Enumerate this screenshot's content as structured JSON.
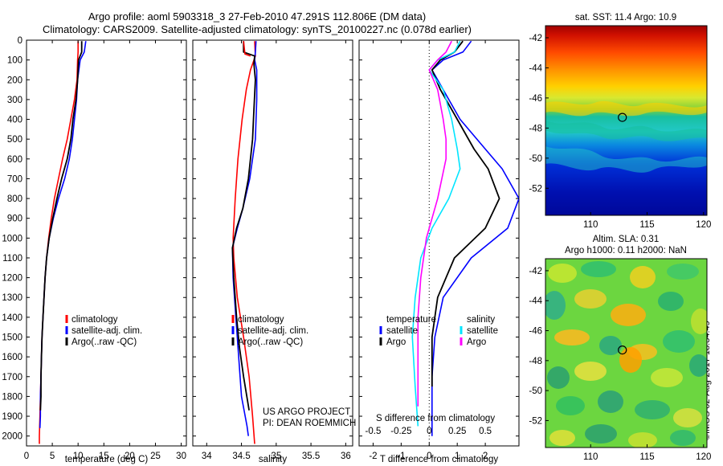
{
  "header": {
    "title_line1": "Argo profile: aoml 5903318_3 27-Feb-2010 47.291S 112.806E (DM data)",
    "title_line2": "Climatology: CARS2009. Satellite-adjusted climatology: synTS_20100227.nc (0.078d earlier)"
  },
  "stamp": "©IMOS 02-Aug-2017 18:34:49",
  "colors": {
    "climatology": "#ff0000",
    "satellite": "#0000ff",
    "argo": "#000000",
    "t_sat": "#0000ff",
    "s_sat": "#00e5ff",
    "s_argo": "#ff00ff"
  },
  "chart_data": [
    {
      "type": "line",
      "xlabel": "temperature (deg C)",
      "ylabel": "",
      "xlim": [
        0,
        31
      ],
      "ylim": [
        2050,
        0
      ],
      "xticks": [
        0,
        5,
        10,
        15,
        20,
        25,
        30
      ],
      "yticks": [
        0,
        100,
        200,
        300,
        400,
        500,
        600,
        700,
        800,
        900,
        1000,
        1100,
        1200,
        1300,
        1400,
        1500,
        1600,
        1700,
        1800,
        1900,
        2000
      ],
      "legend": [
        "climatology",
        "satellite-adj. clim.",
        "Argo(..raw -QC)"
      ],
      "legend_position": "lower-center",
      "series": [
        {
          "name": "climatology",
          "color": "#ff0000",
          "points": [
            [
              10.0,
              5
            ],
            [
              10.0,
              60
            ],
            [
              9.9,
              100
            ],
            [
              9.8,
              200
            ],
            [
              9.3,
              300
            ],
            [
              8.6,
              400
            ],
            [
              7.9,
              500
            ],
            [
              7.0,
              600
            ],
            [
              6.2,
              700
            ],
            [
              5.4,
              800
            ],
            [
              4.8,
              900
            ],
            [
              4.3,
              1000
            ],
            [
              3.9,
              1100
            ],
            [
              3.6,
              1200
            ],
            [
              3.4,
              1300
            ],
            [
              3.2,
              1400
            ],
            [
              3.0,
              1500
            ],
            [
              2.9,
              1600
            ],
            [
              2.8,
              1700
            ],
            [
              2.7,
              1800
            ],
            [
              2.6,
              1900
            ],
            [
              2.5,
              2000
            ],
            [
              2.5,
              2040
            ]
          ]
        },
        {
          "name": "satellite-adj. clim.",
          "color": "#0000ff",
          "points": [
            [
              11.5,
              5
            ],
            [
              11.2,
              60
            ],
            [
              10.4,
              100
            ],
            [
              9.9,
              200
            ],
            [
              9.7,
              300
            ],
            [
              9.3,
              400
            ],
            [
              8.9,
              500
            ],
            [
              8.3,
              600
            ],
            [
              7.4,
              700
            ],
            [
              6.2,
              800
            ],
            [
              5.2,
              900
            ],
            [
              4.4,
              1000
            ],
            [
              3.9,
              1100
            ],
            [
              3.6,
              1200
            ],
            [
              3.4,
              1300
            ],
            [
              3.2,
              1400
            ],
            [
              3.0,
              1500
            ],
            [
              2.9,
              1600
            ],
            [
              2.8,
              1700
            ],
            [
              2.7,
              1800
            ],
            [
              2.7,
              1900
            ],
            [
              2.6,
              1960
            ]
          ]
        },
        {
          "name": "Argo(..raw -QC)",
          "color": "#000000",
          "points": [
            [
              10.7,
              5
            ],
            [
              10.7,
              60
            ],
            [
              10.1,
              100
            ],
            [
              9.9,
              200
            ],
            [
              9.6,
              300
            ],
            [
              9.0,
              400
            ],
            [
              8.6,
              500
            ],
            [
              7.9,
              600
            ],
            [
              6.8,
              700
            ],
            [
              5.9,
              800
            ],
            [
              5.1,
              900
            ],
            [
              4.4,
              1000
            ],
            [
              3.9,
              1100
            ],
            [
              3.6,
              1200
            ],
            [
              3.4,
              1300
            ],
            [
              3.2,
              1400
            ],
            [
              3.0,
              1500
            ],
            [
              2.9,
              1600
            ],
            [
              2.8,
              1700
            ],
            [
              2.8,
              1800
            ],
            [
              2.7,
              1870
            ]
          ]
        }
      ]
    },
    {
      "type": "line",
      "xlabel": "salinity",
      "ylabel": "",
      "xlim": [
        33.8,
        36.1
      ],
      "ylim": [
        2050,
        0
      ],
      "xticks": [
        34,
        34.5,
        35,
        35.5,
        36
      ],
      "legend": [
        "climatology",
        "satellite-adj. clim.",
        "Argo(..raw -QC)"
      ],
      "legend_position": "lower-center",
      "annotations": [
        "US ARGO PROJECT",
        "PI: DEAN ROEMMICH"
      ],
      "series": [
        {
          "name": "climatology",
          "color": "#ff0000",
          "points": [
            [
              34.69,
              5
            ],
            [
              34.7,
              80
            ],
            [
              34.63,
              150
            ],
            [
              34.57,
              250
            ],
            [
              34.51,
              400
            ],
            [
              34.45,
              600
            ],
            [
              34.41,
              800
            ],
            [
              34.38,
              1000
            ],
            [
              34.39,
              1100
            ],
            [
              34.44,
              1300
            ],
            [
              34.53,
              1500
            ],
            [
              34.61,
              1700
            ],
            [
              34.66,
              1900
            ],
            [
              34.69,
              2040
            ]
          ]
        },
        {
          "name": "satellite-adj. clim.",
          "color": "#0000ff",
          "points": [
            [
              34.71,
              5
            ],
            [
              34.7,
              60
            ],
            [
              34.69,
              100
            ],
            [
              34.72,
              150
            ],
            [
              34.72,
              300
            ],
            [
              34.7,
              500
            ],
            [
              34.62,
              700
            ],
            [
              34.52,
              850
            ],
            [
              34.44,
              950
            ],
            [
              34.37,
              1050
            ],
            [
              34.38,
              1200
            ],
            [
              34.42,
              1400
            ],
            [
              34.46,
              1600
            ],
            [
              34.5,
              1800
            ],
            [
              34.58,
              1950
            ],
            [
              34.6,
              2000
            ]
          ]
        },
        {
          "name": "Argo(..raw -QC)",
          "color": "#000000",
          "points": [
            [
              34.53,
              5
            ],
            [
              34.53,
              60
            ],
            [
              34.69,
              80
            ],
            [
              34.68,
              120
            ],
            [
              34.7,
              200
            ],
            [
              34.68,
              350
            ],
            [
              34.66,
              500
            ],
            [
              34.6,
              700
            ],
            [
              34.52,
              850
            ],
            [
              34.43,
              950
            ],
            [
              34.37,
              1050
            ],
            [
              34.39,
              1200
            ],
            [
              34.43,
              1400
            ],
            [
              34.47,
              1550
            ],
            [
              34.53,
              1700
            ],
            [
              34.61,
              1870
            ]
          ]
        },
        {
          "name": "",
          "color": "#ff0000",
          "points": [
            [
              34.53,
              5
            ],
            [
              34.55,
              70
            ],
            [
              34.63,
              80
            ]
          ]
        }
      ]
    },
    {
      "type": "line",
      "xlabel": "T difference from climatology",
      "xlabel2": "S difference from climatology",
      "xlim": [
        -2.5,
        3.2
      ],
      "ylim": [
        2050,
        0
      ],
      "xticks": [
        -2,
        -1,
        0,
        1,
        2
      ],
      "xticks2_labels": [
        "-0.5",
        "-0.25",
        "0",
        "0.25",
        "0.5"
      ],
      "legend_titles": [
        "temperature",
        "salinity"
      ],
      "legend": [
        "satellite",
        "Argo",
        "satellite",
        "Argo"
      ],
      "legend_position": "lower-center",
      "zero_line": 0,
      "series": [
        {
          "name": "satellite",
          "group": "temperature",
          "color": "#0000ff",
          "points": [
            [
              1.5,
              5
            ],
            [
              1.2,
              60
            ],
            [
              0.5,
              100
            ],
            [
              0.1,
              150
            ],
            [
              0.5,
              250
            ],
            [
              1.1,
              400
            ],
            [
              2.0,
              550
            ],
            [
              2.6,
              650
            ],
            [
              3.2,
              800
            ],
            [
              2.8,
              950
            ],
            [
              1.5,
              1100
            ],
            [
              0.5,
              1300
            ],
            [
              0.2,
              1500
            ],
            [
              0.1,
              1700
            ],
            [
              0.1,
              2000
            ]
          ]
        },
        {
          "name": "Argo",
          "group": "temperature",
          "color": "#000000",
          "points": [
            [
              1.2,
              5
            ],
            [
              0.9,
              60
            ],
            [
              0.4,
              100
            ],
            [
              0.1,
              150
            ],
            [
              0.4,
              250
            ],
            [
              1.0,
              400
            ],
            [
              1.6,
              550
            ],
            [
              2.1,
              650
            ],
            [
              2.5,
              800
            ],
            [
              2.0,
              950
            ],
            [
              0.9,
              1100
            ],
            [
              0.3,
              1300
            ],
            [
              0.1,
              1500
            ],
            [
              0.1,
              1750
            ]
          ]
        },
        {
          "name": "satellite",
          "group": "salinity",
          "color": "#00e5ff",
          "points": [
            [
              1.1,
              5
            ],
            [
              0.9,
              60
            ],
            [
              0.3,
              100
            ],
            [
              0.0,
              150
            ],
            [
              0.5,
              250
            ],
            [
              0.8,
              400
            ],
            [
              1.0,
              550
            ],
            [
              1.1,
              650
            ],
            [
              0.7,
              800
            ],
            [
              0.1,
              950
            ],
            [
              -0.3,
              1100
            ],
            [
              -0.5,
              1300
            ],
            [
              -0.6,
              1500
            ],
            [
              -0.5,
              1750
            ],
            [
              -0.4,
              1950
            ]
          ]
        },
        {
          "name": "Argo",
          "group": "salinity",
          "color": "#ff00ff",
          "points": [
            [
              0.8,
              5
            ],
            [
              0.6,
              60
            ],
            [
              0.3,
              100
            ],
            [
              0.0,
              150
            ],
            [
              0.3,
              250
            ],
            [
              0.5,
              400
            ],
            [
              0.6,
              500
            ],
            [
              0.6,
              600
            ],
            [
              0.3,
              800
            ],
            [
              -0.1,
              1000
            ],
            [
              -0.3,
              1200
            ],
            [
              -0.4,
              1400
            ],
            [
              -0.4,
              1600
            ],
            [
              -0.4,
              1850
            ]
          ]
        }
      ]
    },
    {
      "type": "heatmap",
      "title": "sat. SST: 11.4  Argo: 10.9",
      "xlim": [
        106,
        120.3
      ],
      "ylim": [
        -53.8,
        -41.2
      ],
      "xticks": [
        110,
        115,
        120
      ],
      "yticks": [
        -42,
        -44,
        -46,
        -48,
        -50,
        -52
      ],
      "marker": {
        "lon": 112.806,
        "lat": -47.291
      }
    },
    {
      "type": "heatmap",
      "title": "Altim. SLA: 0.31",
      "subtitle": "Argo h1000: 0.11  h2000: NaN",
      "xlim": [
        106,
        120.3
      ],
      "ylim": [
        -53.8,
        -41.2
      ],
      "xticks": [
        110,
        115,
        120
      ],
      "yticks": [
        -42,
        -44,
        -46,
        -48,
        -50,
        -52
      ],
      "marker": {
        "lon": 112.806,
        "lat": -47.291
      }
    }
  ]
}
